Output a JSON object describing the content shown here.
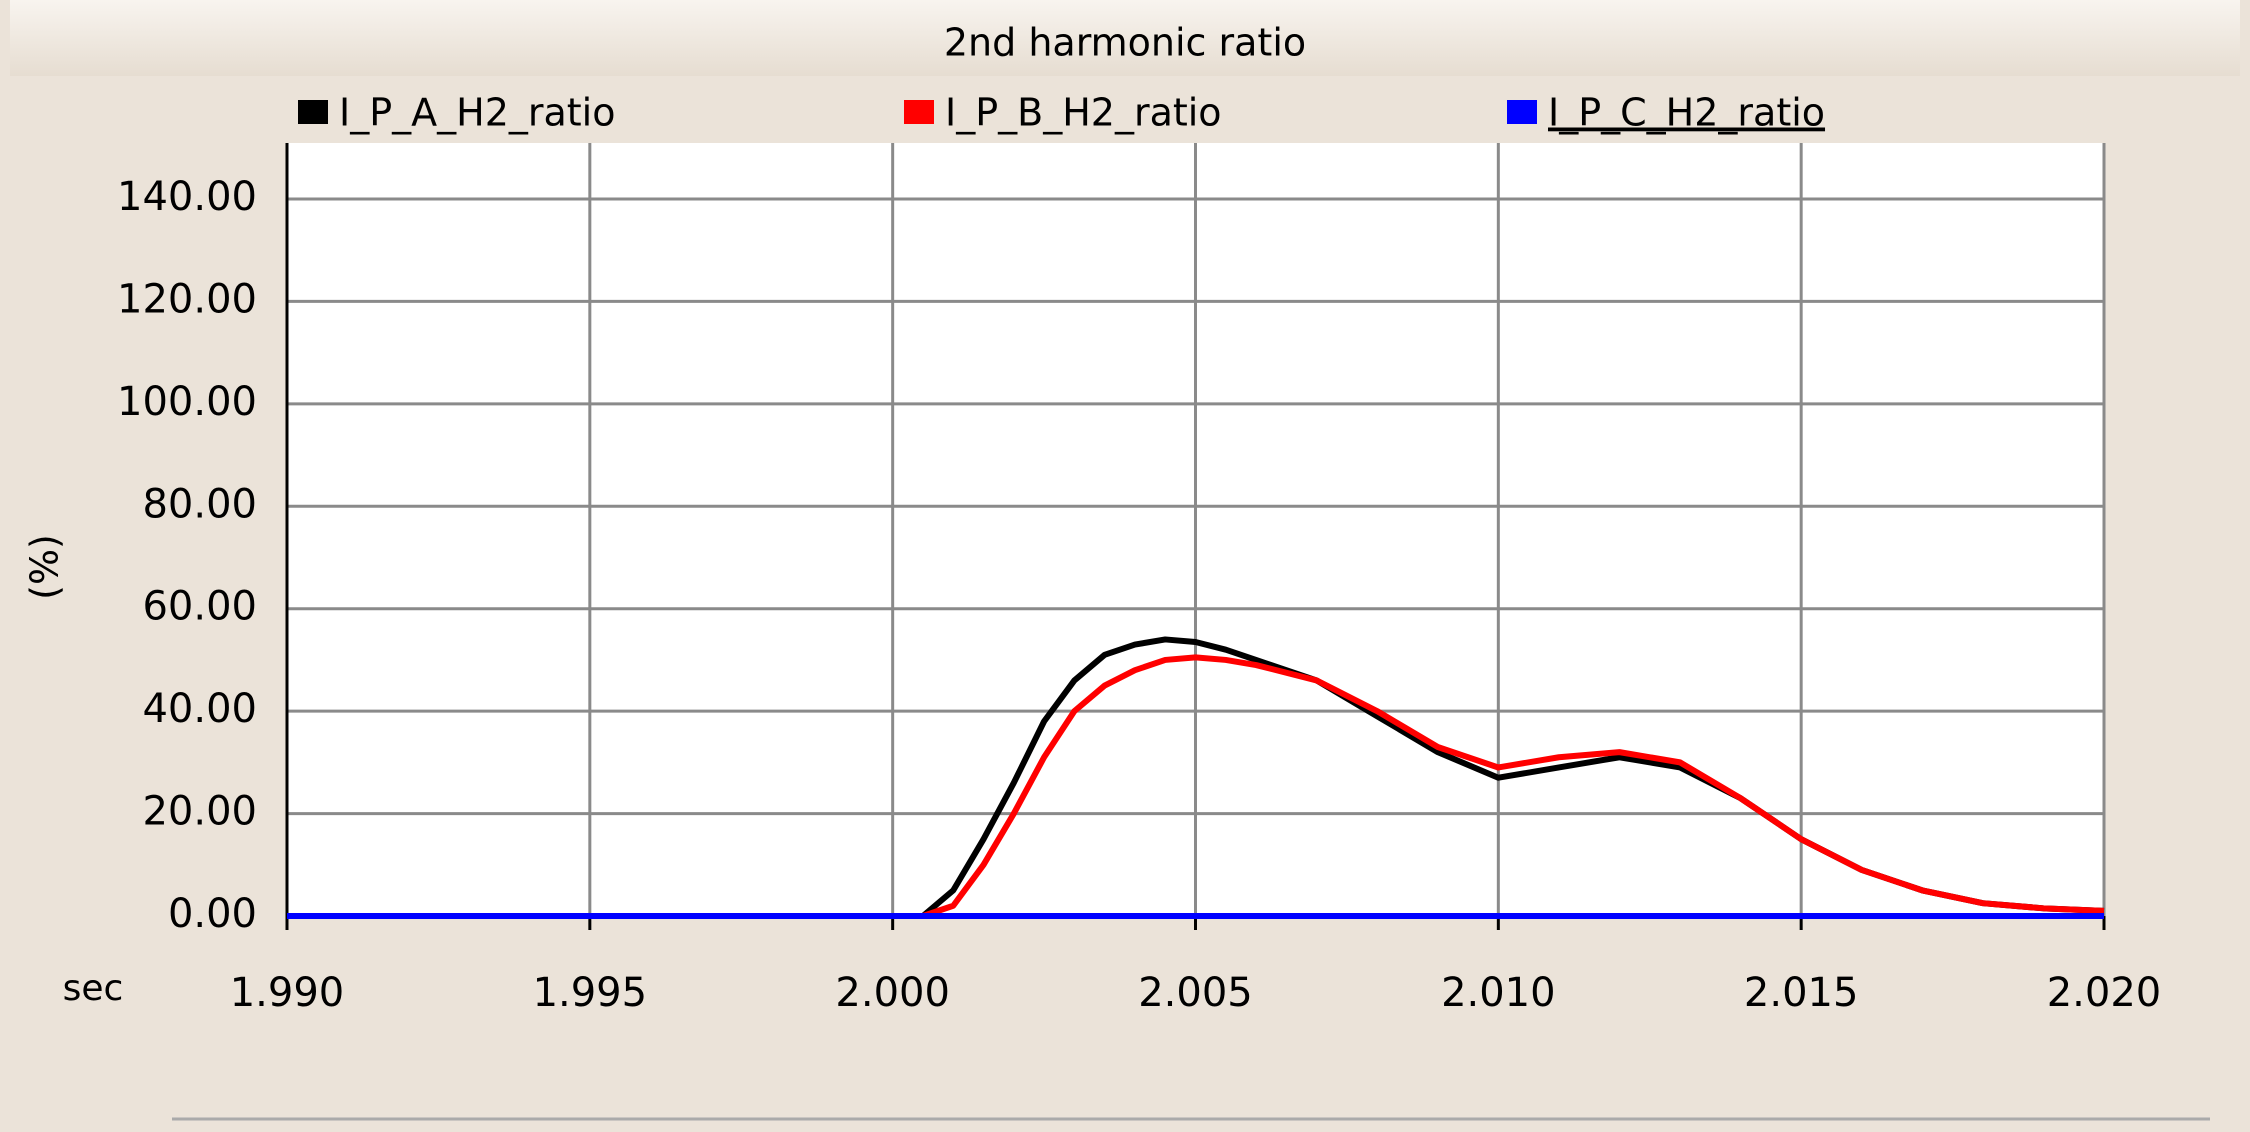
{
  "chart_data": {
    "type": "line",
    "title": "2nd harmonic ratio",
    "x_label": "sec",
    "y_label": "(%)",
    "x": [
      1.99,
      2.0,
      2.0005,
      2.001,
      2.0015,
      2.002,
      2.0025,
      2.003,
      2.0035,
      2.004,
      2.0045,
      2.005,
      2.0055,
      2.006,
      2.007,
      2.008,
      2.009,
      2.01,
      2.011,
      2.012,
      2.013,
      2.014,
      2.015,
      2.016,
      2.017,
      2.018,
      2.019,
      2.02
    ],
    "series": [
      {
        "name": "I_P_A_H2_ratio",
        "color": "#000000",
        "values": [
          0,
          0,
          0,
          5,
          15,
          26,
          38,
          46,
          51,
          53,
          54,
          53.5,
          52,
          50,
          46,
          39,
          32,
          27,
          29,
          31,
          29,
          23,
          15,
          9,
          5,
          2.5,
          1.5,
          1
        ]
      },
      {
        "name": "I_P_B_H2_ratio",
        "color": "#ff0000",
        "values": [
          0,
          0,
          0,
          2,
          10,
          20,
          31,
          40,
          45,
          48,
          50,
          50.5,
          50,
          49,
          46,
          40,
          33,
          29,
          31,
          32,
          30,
          23,
          15,
          9,
          5,
          2.5,
          1.5,
          1
        ]
      },
      {
        "name": "I_P_C_H2_ratio",
        "color": "#0000ff",
        "values": [
          0,
          0,
          0,
          0,
          0,
          0,
          0,
          0,
          0,
          0,
          0,
          0,
          0,
          0,
          0,
          0,
          0,
          0,
          0,
          0,
          0,
          0,
          0,
          0,
          0,
          0,
          0,
          0
        ]
      }
    ],
    "xlim": [
      1.99,
      2.02
    ],
    "xticks": [
      {
        "value": 1.99,
        "label": "1.990"
      },
      {
        "value": 1.995,
        "label": "1.995"
      },
      {
        "value": 2.0,
        "label": "2.000"
      },
      {
        "value": 2.005,
        "label": "2.005"
      },
      {
        "value": 2.01,
        "label": "2.010"
      },
      {
        "value": 2.015,
        "label": "2.015"
      },
      {
        "value": 2.02,
        "label": "2.020"
      }
    ],
    "ylim": [
      0,
      140
    ],
    "yticks": [
      {
        "value": 0,
        "label": "0.00"
      },
      {
        "value": 20,
        "label": "20.00"
      },
      {
        "value": 40,
        "label": "40.00"
      },
      {
        "value": 60,
        "label": "60.00"
      },
      {
        "value": 80,
        "label": "80.00"
      },
      {
        "value": 100,
        "label": "100.00"
      },
      {
        "value": 120,
        "label": "120.00"
      },
      {
        "value": 140,
        "label": "140.00"
      }
    ],
    "grid": true
  }
}
